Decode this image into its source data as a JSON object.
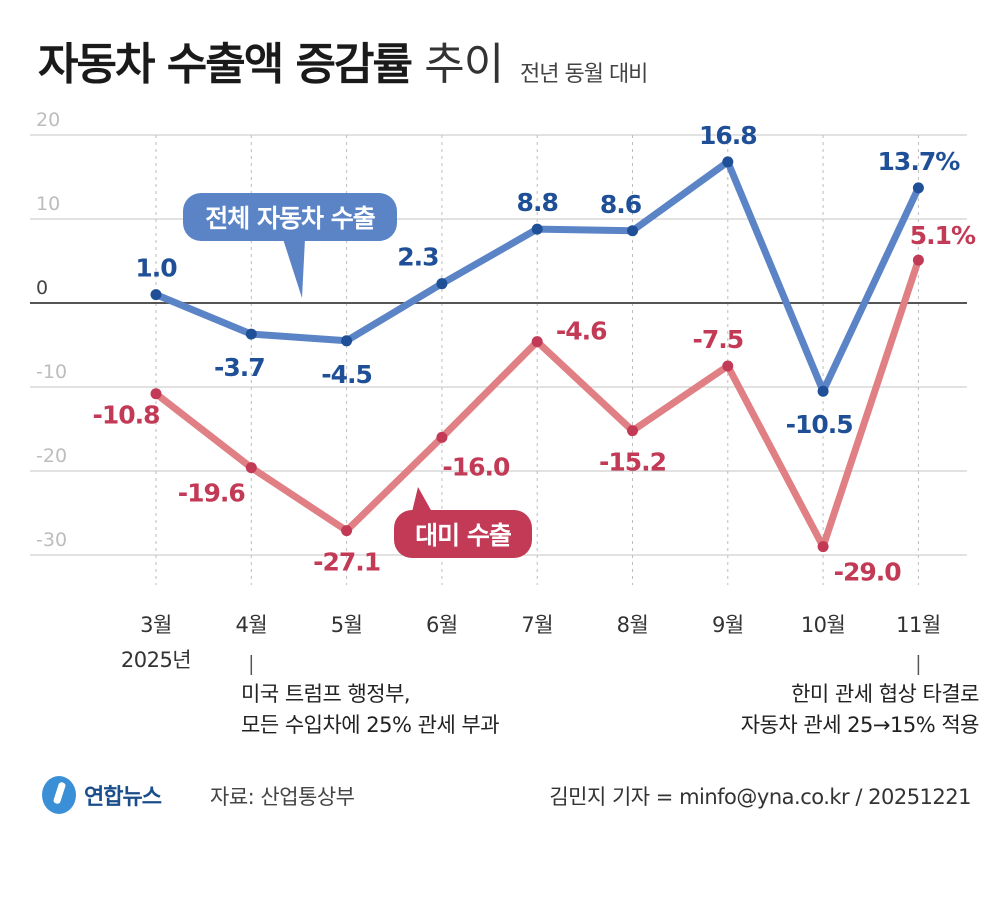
{
  "header": {
    "title_bold": "자동차 수출액 증감률",
    "title_light": "추이",
    "subtitle": "전년 동월 대비"
  },
  "chart_data": {
    "type": "line",
    "categories": [
      "3월",
      "4월",
      "5월",
      "6월",
      "7월",
      "8월",
      "9월",
      "10월",
      "11월"
    ],
    "year_label": "2025년",
    "ylim": [
      -30,
      20
    ],
    "yticks": [
      20,
      10,
      0,
      -10,
      -20,
      -30
    ],
    "grid": true,
    "series": [
      {
        "name": "전체 자동차 수출",
        "color": "#5b84c7",
        "label_color": "#1f4f96",
        "values": [
          1.0,
          -3.7,
          -4.5,
          2.3,
          8.8,
          8.6,
          16.8,
          -10.5,
          13.7
        ],
        "labels": [
          "1.0",
          "-3.7",
          "-4.5",
          "2.3",
          "8.8",
          "8.6",
          "16.8",
          "-10.5",
          "13.7%"
        ]
      },
      {
        "name": "대미 수출",
        "color": "#e07f84",
        "label_color": "#c23a55",
        "values": [
          -10.8,
          -19.6,
          -27.1,
          -16.0,
          -4.6,
          -15.2,
          -7.5,
          -29.0,
          5.1
        ],
        "labels": [
          "-10.8",
          "-19.6",
          "-27.1",
          "-16.0",
          "-4.6",
          "-15.2",
          "-7.5",
          "-29.0",
          "5.1%"
        ]
      }
    ]
  },
  "annotations": {
    "april_line1": "미국 트럼프 행정부,",
    "april_line2": "모든 수입차에 25% 관세 부과",
    "nov_line1": "한미 관세 협상 타결로",
    "nov_line2": "자동차 관세 25→15% 적용"
  },
  "footer": {
    "logo": "연합뉴스",
    "source": "자료: 산업통상부",
    "credit": "김민지 기자 = minfo@yna.co.kr / 20251221"
  }
}
